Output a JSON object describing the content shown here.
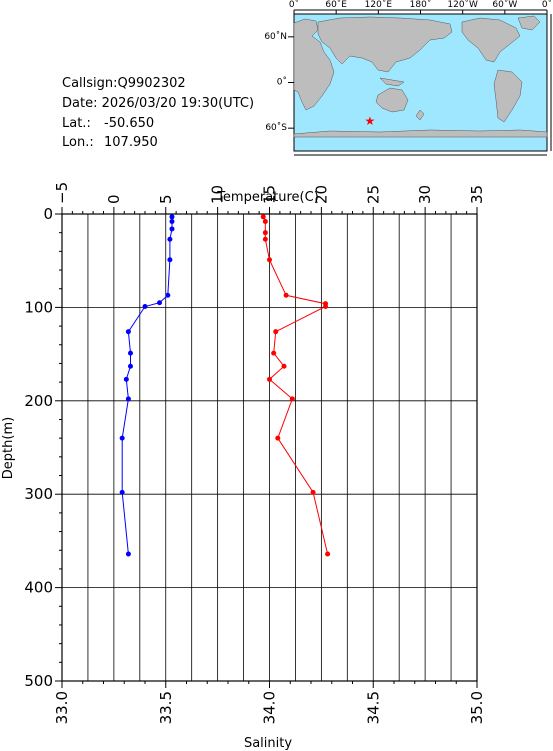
{
  "info": {
    "callsign": "Callsign:Q9902302",
    "date": "Date:  2026/03/20 19:30(UTC)",
    "lat_label": "Lat.:",
    "lat_value": "-50.650",
    "lon_label": "Lon.:",
    "lon_value": "107.950"
  },
  "map": {
    "top_labels": [
      "0˚",
      "60˚E",
      "120˚E",
      "180˚",
      "120˚W",
      "60˚W",
      "0˚"
    ],
    "right_labels": [
      "60˚N",
      "0˚",
      "60˚S"
    ],
    "ocean_color": "#9fe6ff",
    "land_color": "#bdbdbd",
    "marker_color": "#ff0000",
    "marker_icon": "star-icon",
    "marker_lat": -50.65,
    "marker_lon": 107.95
  },
  "chart_data": {
    "type": "line",
    "xlabel_top": "Temperature(C)",
    "xlabel_bottom": "Salinity",
    "ylabel": "Depth(m)",
    "temperature_range": [
      -5,
      35
    ],
    "temperature_ticks": [
      "−5",
      "0",
      "5",
      "10",
      "15",
      "20",
      "25",
      "30",
      "35"
    ],
    "salinity_range": [
      33.0,
      35.0
    ],
    "salinity_ticks": [
      "33.0",
      "33.5",
      "34.0",
      "34.5",
      "35.0"
    ],
    "depth_range": [
      0,
      500
    ],
    "depth_ticks": [
      "0",
      "100",
      "200",
      "300",
      "400",
      "500"
    ],
    "grid": true,
    "series": [
      {
        "color": "#0000ff",
        "axis": "salinity",
        "points": [
          [
            33.53,
            3
          ],
          [
            33.53,
            8
          ],
          [
            33.53,
            16
          ],
          [
            33.52,
            27
          ],
          [
            33.52,
            49
          ],
          [
            33.51,
            87
          ],
          [
            33.47,
            95
          ],
          [
            33.4,
            99
          ],
          [
            33.32,
            126
          ],
          [
            33.33,
            149
          ],
          [
            33.33,
            163
          ],
          [
            33.31,
            177
          ],
          [
            33.32,
            198
          ],
          [
            33.29,
            240
          ],
          [
            33.29,
            298
          ],
          [
            33.32,
            364
          ]
        ]
      },
      {
        "color": "#ff0000",
        "axis": "salinity",
        "points": [
          [
            33.97,
            3
          ],
          [
            33.98,
            8
          ],
          [
            33.98,
            20
          ],
          [
            33.98,
            27
          ],
          [
            34.0,
            49
          ],
          [
            34.08,
            87
          ],
          [
            34.27,
            96
          ],
          [
            34.27,
            99
          ],
          [
            34.03,
            126
          ],
          [
            34.02,
            149
          ],
          [
            34.07,
            163
          ],
          [
            34.0,
            177
          ],
          [
            34.11,
            198
          ],
          [
            34.04,
            240
          ],
          [
            34.21,
            298
          ],
          [
            34.28,
            364
          ]
        ]
      }
    ]
  }
}
